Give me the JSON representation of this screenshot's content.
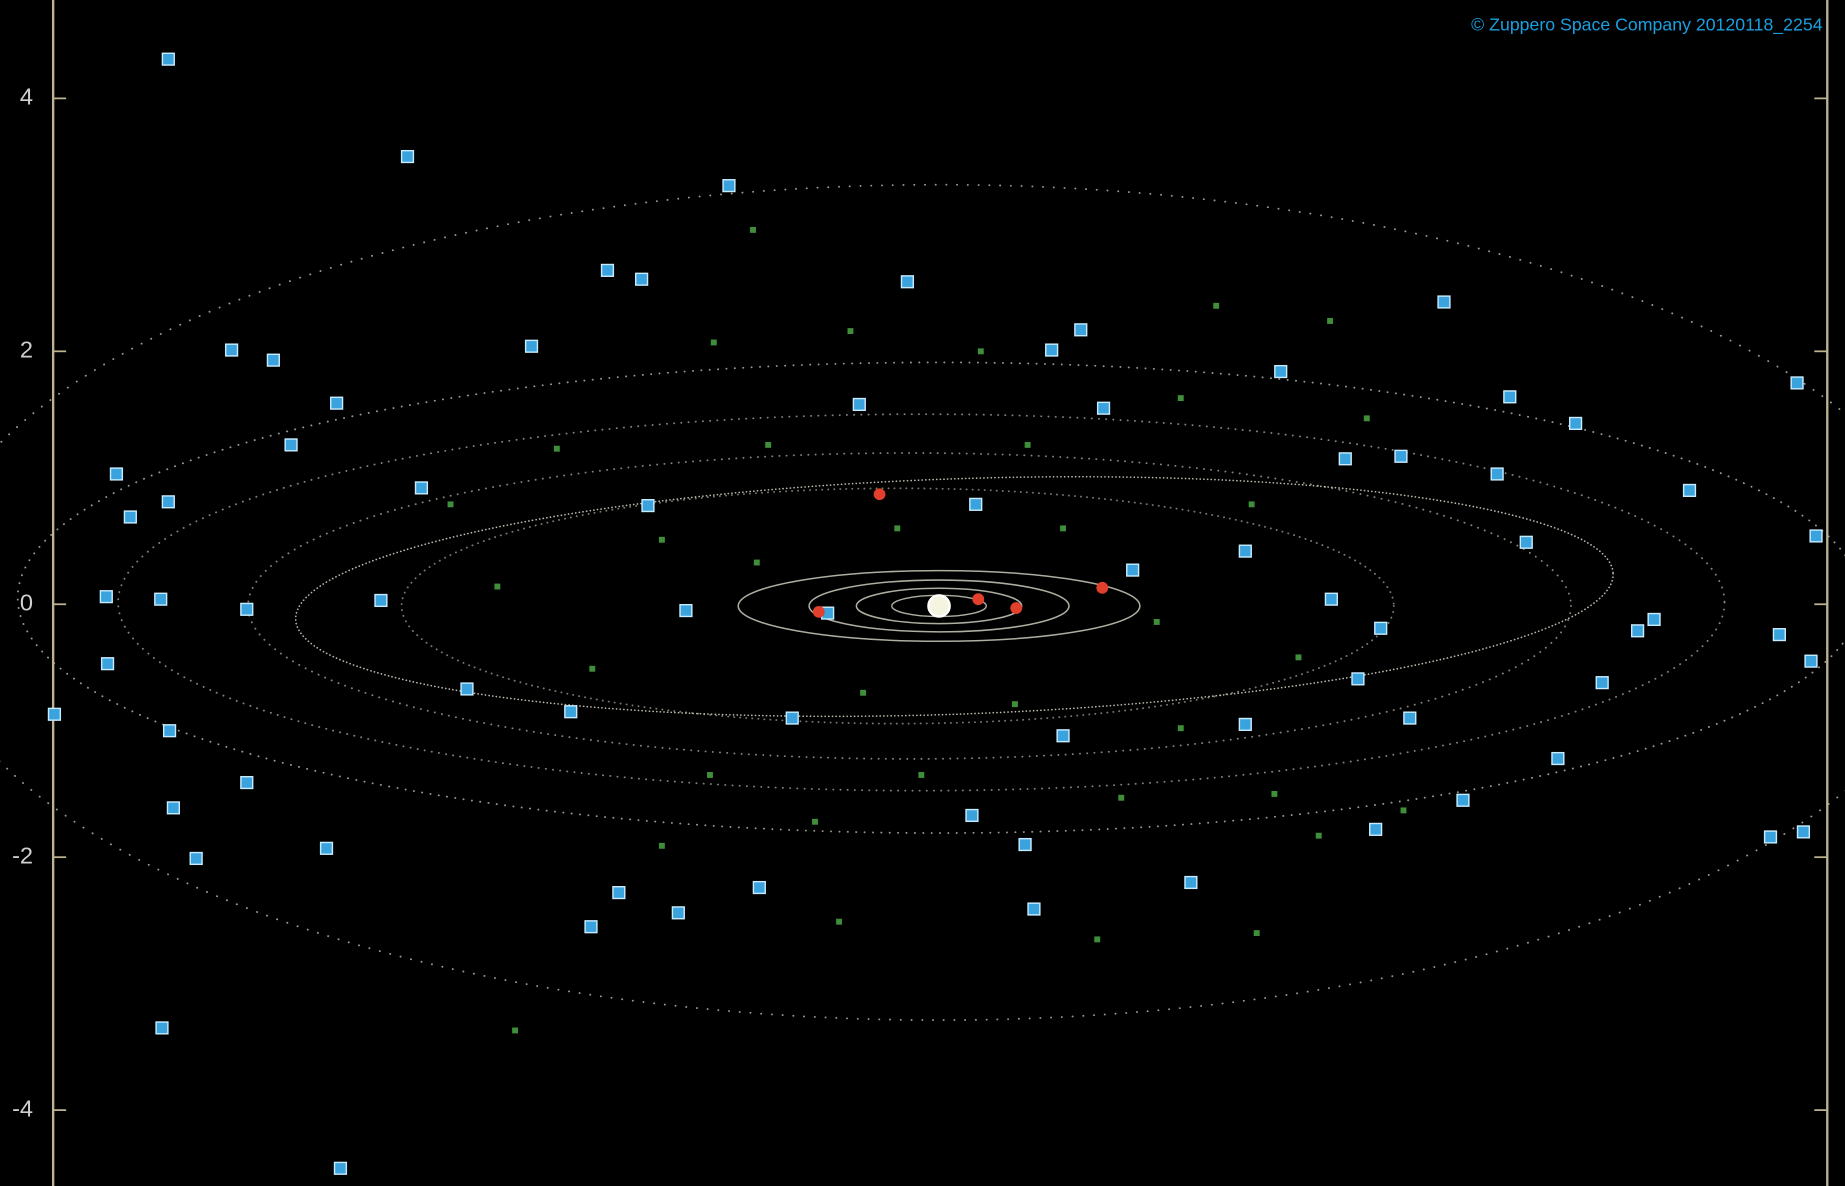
{
  "chart_data": {
    "type": "scatter",
    "annotation": "© Zuppero Space Company 20120118_2254",
    "xlim": [
      -7,
      7
    ],
    "ylim": [
      -4.6,
      4.75
    ],
    "yticks": [
      -4,
      -2,
      0,
      2,
      4
    ],
    "series": [
      {
        "color": "#3aa2dc",
        "marker": "square",
        "x": [
          -6.09,
          -4.2,
          -1.66,
          -2.62,
          -2.35,
          -0.25,
          3.99,
          -5.59,
          -5.26,
          -3.22,
          0.89,
          1.12,
          6.78,
          2.7,
          4.51,
          -4.76,
          -0.63,
          1.3,
          5.03,
          -5.12,
          -6.5,
          -4.09,
          5.93,
          -6.39,
          -6.09,
          3.21,
          3.65,
          4.41,
          -2.3,
          0.29,
          6.93,
          4.64,
          -6.58,
          -6.15,
          -5.47,
          -4.41,
          3.1,
          3.49,
          5.65,
          6.64,
          5.52,
          -6.57,
          6.89,
          3.31,
          5.24,
          -6.99,
          -6.08,
          -5.47,
          4.89,
          4.14,
          -6.05,
          -4.84,
          -5.87,
          3.45,
          6.57,
          6.83,
          0.68,
          1.99,
          0.26,
          -2.53,
          -2.06,
          -2.75,
          0.75,
          -1.42,
          -6.14,
          -4.73,
          -3.73,
          -2.91,
          -1.16,
          0.98,
          2.42,
          3.72,
          -2.0,
          -0.88,
          1.53,
          2.42
        ],
        "y": [
          4.31,
          3.54,
          3.31,
          2.64,
          2.57,
          2.55,
          2.39,
          2.01,
          1.93,
          2.04,
          2.01,
          2.17,
          1.75,
          1.84,
          1.64,
          1.59,
          1.58,
          1.55,
          1.43,
          1.26,
          1.03,
          0.92,
          0.9,
          0.69,
          0.81,
          1.15,
          1.17,
          1.03,
          0.78,
          0.79,
          0.54,
          0.49,
          0.06,
          0.04,
          -0.04,
          0.03,
          0.04,
          -0.19,
          -0.12,
          -0.24,
          -0.21,
          -0.47,
          -0.45,
          -0.59,
          -0.62,
          -0.87,
          -1.0,
          -1.41,
          -1.22,
          -1.55,
          -1.61,
          -1.93,
          -2.01,
          -1.78,
          -1.84,
          -1.8,
          -1.9,
          -2.2,
          -1.67,
          -2.28,
          -2.44,
          -2.55,
          -2.41,
          -2.24,
          -3.35,
          -4.46,
          -0.67,
          -0.85,
          -0.9,
          -1.04,
          -0.95,
          -0.9,
          -0.05,
          -0.07,
          0.27,
          0.42
        ]
      },
      {
        "color": "#3f8f3a",
        "marker": "small-square",
        "x": [
          -1.47,
          2.19,
          3.09,
          -1.78,
          -0.7,
          3.38,
          -3.02,
          1.91,
          -1.35,
          0.7,
          -2.19,
          -0.33,
          0.98,
          2.47,
          -3.49,
          -1.44,
          1.72,
          2.84,
          -2.74,
          -0.6,
          0.6,
          1.91,
          -1.81,
          -0.14,
          1.44,
          2.65,
          -0.98,
          3.0,
          1.25,
          2.51,
          -3.35,
          -0.79,
          -2.19,
          3.67,
          -3.86,
          0.33
        ],
        "y": [
          2.96,
          2.36,
          2.24,
          2.07,
          2.16,
          1.47,
          1.23,
          1.63,
          1.26,
          1.26,
          0.51,
          0.6,
          0.6,
          0.79,
          0.14,
          0.33,
          -0.14,
          -0.42,
          -0.51,
          -0.7,
          -0.79,
          -0.98,
          -1.35,
          -1.35,
          -1.53,
          -1.5,
          -1.72,
          -1.83,
          -2.65,
          -2.6,
          -3.37,
          -2.51,
          -1.91,
          -1.63,
          0.79,
          2.0
        ]
      },
      {
        "color": "#e2402c",
        "marker": "dot",
        "x": [
          -0.47,
          -0.95,
          0.31,
          0.61,
          1.29
        ],
        "y": [
          0.87,
          -0.06,
          0.04,
          -0.03,
          0.13
        ]
      }
    ]
  }
}
